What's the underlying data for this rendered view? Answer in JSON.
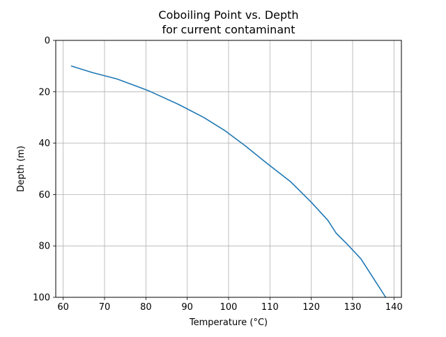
{
  "chart_data": {
    "type": "line",
    "title": "Coboiling Point vs. Depth",
    "subtitle": "for current contaminant",
    "xlabel": "Temperature (°C)",
    "ylabel": "Depth (m)",
    "xlim": [
      58.2,
      141.8
    ],
    "ylim": [
      100,
      0
    ],
    "y_inverted": true,
    "xticks": [
      60,
      70,
      80,
      90,
      100,
      110,
      120,
      130,
      140
    ],
    "yticks": [
      0,
      20,
      40,
      60,
      80,
      100
    ],
    "grid": true,
    "series": [
      {
        "color": "#1f77b4",
        "x": [
          62,
          67,
          73,
          80.5,
          88,
          94,
          99,
          104,
          109,
          115,
          120,
          124,
          126,
          128.5,
          132,
          135,
          138
        ],
        "y": [
          10,
          12.5,
          15,
          19.5,
          25,
          30,
          35,
          41,
          47.5,
          55,
          63,
          70,
          75,
          79,
          85,
          92.5,
          100
        ]
      }
    ]
  }
}
